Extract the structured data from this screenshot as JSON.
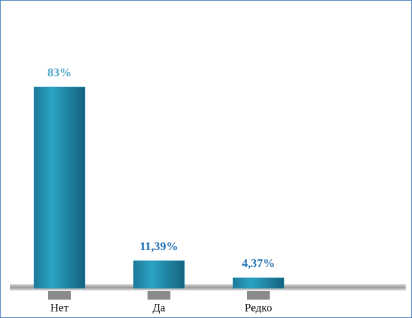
{
  "chart_data": {
    "type": "bar",
    "categories": [
      "Нет",
      "Да",
      "Редко"
    ],
    "values": [
      83,
      11.39,
      4.37
    ],
    "value_labels": [
      "83%",
      "11,39%",
      "4,37%"
    ],
    "value_label_colors": [
      "#4aa6c6",
      "#1f6fb4",
      "#1f6fb4"
    ],
    "color": "#2394b5"
  }
}
